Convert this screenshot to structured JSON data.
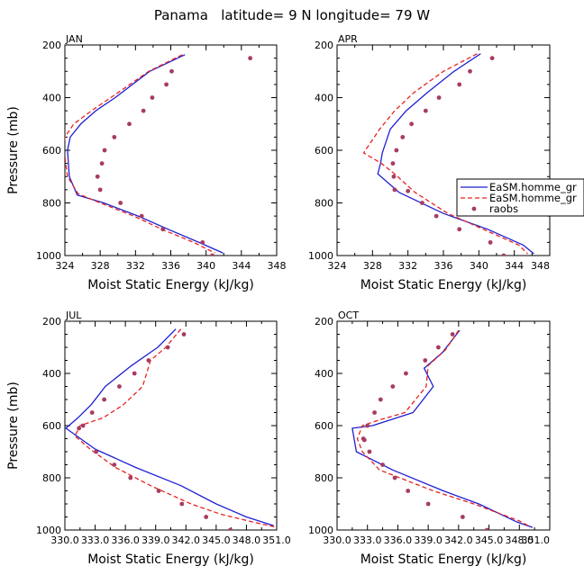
{
  "figure_title": "Panama   latitude= 9 N longitude= 79 W",
  "chart_data": [
    {
      "type": "line",
      "panel": "JAN",
      "xlabel": "Moist Static Energy (kJ/kg)",
      "ylabel": "Pressure (mb)",
      "xlim": [
        324,
        348
      ],
      "ylim": [
        200,
        1000
      ],
      "y_inverted": true,
      "x_tick_labels": [
        "324",
        "328",
        "332",
        "336",
        "340",
        "344",
        "348"
      ],
      "y_tick_labels": [
        "200",
        "400",
        "600",
        "800",
        "1000"
      ],
      "series": [
        {
          "name": "EaSM.homme_gr",
          "style": "solid",
          "color": "#1f1fd1",
          "x": [
            337.6,
            333.6,
            329.7,
            327.5,
            325.8,
            324.6,
            324.3,
            324.5,
            325.4,
            328.4,
            332.3,
            335.7,
            339.2,
            341.9
          ],
          "y": [
            237,
            300,
            400,
            450,
            500,
            550,
            600,
            700,
            770,
            800,
            850,
            900,
            950,
            990
          ]
        },
        {
          "name": "EaSM.homme_gr",
          "style": "dashed",
          "color": "#e8231f",
          "x": [
            337.3,
            333.5,
            329.2,
            327.0,
            325.0,
            324.0,
            323.9,
            324.3,
            325.5,
            328.0,
            331.8,
            335.0,
            338.6,
            341.0
          ],
          "y": [
            237,
            300,
            400,
            450,
            500,
            550,
            600,
            700,
            765,
            800,
            850,
            900,
            950,
            990
          ]
        },
        {
          "name": "raobs",
          "style": "markers",
          "color": "#a63c62",
          "x": [
            345.0,
            336.1,
            335.5,
            333.9,
            332.9,
            331.3,
            329.6,
            328.5,
            328.2,
            327.7,
            328.0,
            330.3,
            332.7,
            335.1,
            339.6,
            340.7
          ],
          "y": [
            250,
            300,
            350,
            400,
            450,
            500,
            550,
            600,
            650,
            700,
            750,
            800,
            850,
            900,
            950,
            1000
          ]
        }
      ]
    },
    {
      "type": "line",
      "panel": "APR",
      "xlabel": "Moist Static Energy (kJ/kg)",
      "ylabel": "",
      "xlim": [
        324,
        348
      ],
      "ylim": [
        200,
        1000
      ],
      "y_inverted": true,
      "x_tick_labels": [
        "324",
        "328",
        "332",
        "336",
        "340",
        "344",
        "348"
      ],
      "y_tick_labels": [
        "200",
        "400",
        "600",
        "800",
        "1000"
      ],
      "series": [
        {
          "name": "EaSM.homme_gr",
          "style": "solid",
          "color": "#1f1fd1",
          "x": [
            340.2,
            337.2,
            334.2,
            331.8,
            330.0,
            329.1,
            328.9,
            328.6,
            331.0,
            336.0,
            341.0,
            345.0,
            346.2
          ],
          "y": [
            233,
            300,
            380,
            450,
            520,
            610,
            650,
            690,
            760,
            840,
            900,
            960,
            993
          ]
        },
        {
          "name": "EaSM.homme_gr",
          "style": "dashed",
          "color": "#e8231f",
          "x": [
            339.8,
            336.0,
            332.7,
            330.5,
            328.8,
            327.0,
            329.0,
            330.5,
            332.8,
            336.5,
            340.5,
            344.5,
            345.5
          ],
          "y": [
            233,
            300,
            380,
            450,
            520,
            610,
            650,
            690,
            760,
            840,
            900,
            960,
            993
          ]
        },
        {
          "name": "raobs",
          "style": "markers",
          "color": "#a63c62",
          "x": [
            341.5,
            339.0,
            337.8,
            335.5,
            334.0,
            332.4,
            331.4,
            330.7,
            330.3,
            330.4,
            330.5,
            332.0,
            333.6,
            335.2,
            337.8,
            341.3,
            342.8
          ],
          "y": [
            250,
            300,
            350,
            400,
            450,
            500,
            550,
            600,
            650,
            700,
            750,
            755,
            800,
            850,
            900,
            950,
            1000
          ]
        }
      ],
      "legend": {
        "placement": "right-middle",
        "entries": [
          {
            "label": "EaSM.homme_gr",
            "style": "solid",
            "color": "#1f1fd1"
          },
          {
            "label": "EaSM.homme_gr",
            "style": "dashed",
            "color": "#e8231f"
          },
          {
            "label": "raobs",
            "style": "markers",
            "color": "#a63c62"
          }
        ]
      }
    },
    {
      "type": "line",
      "panel": "JUL",
      "xlabel": "Moist Static Energy (kJ/kg)",
      "ylabel": "Pressure (mb)",
      "xlim": [
        330.0,
        351.0
      ],
      "ylim": [
        200,
        1000
      ],
      "y_inverted": true,
      "x_tick_labels": [
        "330.0",
        "333.0",
        "336.0",
        "339.0",
        "342.0",
        "345.0",
        "348.0",
        "351.0"
      ],
      "y_tick_labels": [
        "200",
        "400",
        "600",
        "800",
        "1000"
      ],
      "series": [
        {
          "name": "EaSM.homme_gr",
          "style": "solid",
          "color": "#1f1fd1",
          "x": [
            341.0,
            339.2,
            336.6,
            334.0,
            332.6,
            331.3,
            330.1,
            333.0,
            337.0,
            341.5,
            345.0,
            348.0,
            350.7
          ],
          "y": [
            230,
            300,
            370,
            450,
            520,
            570,
            610,
            690,
            760,
            830,
            900,
            950,
            983
          ]
        },
        {
          "name": "EaSM.homme_gr",
          "style": "dashed",
          "color": "#e8231f",
          "x": [
            341.5,
            340.0,
            338.5,
            337.7,
            335.8,
            333.8,
            331.5,
            331.0,
            332.5,
            335.0,
            338.5,
            342.5,
            345.5,
            348.7,
            350.8
          ],
          "y": [
            230,
            300,
            350,
            450,
            520,
            570,
            600,
            640,
            690,
            760,
            830,
            900,
            940,
            970,
            988
          ]
        },
        {
          "name": "raobs",
          "style": "markers",
          "color": "#a63c62",
          "x": [
            341.8,
            340.2,
            338.3,
            336.9,
            335.4,
            333.9,
            332.7,
            331.8,
            331.4,
            333.1,
            334.9,
            336.5,
            339.3,
            341.6,
            344.0,
            346.4
          ],
          "y": [
            250,
            300,
            350,
            400,
            450,
            500,
            550,
            600,
            610,
            700,
            750,
            800,
            850,
            900,
            950,
            1000
          ]
        }
      ]
    },
    {
      "type": "line",
      "panel": "OCT",
      "xlabel": "Moist Static Energy (kJ/kg)",
      "ylabel": "",
      "xlim": [
        330.0,
        351.0
      ],
      "ylim": [
        200,
        1000
      ],
      "y_inverted": true,
      "x_tick_labels": [
        "330.0",
        "333.0",
        "336.0",
        "339.0",
        "342.0",
        "345.0",
        "348.0",
        "351.0"
      ],
      "y_tick_labels": [
        "200",
        "400",
        "600",
        "800",
        "1000"
      ],
      "series": [
        {
          "name": "EaSM.homme_gr",
          "style": "solid",
          "color": "#1f1fd1",
          "x": [
            342.1,
            340.4,
            338.6,
            339.5,
            337.5,
            333.5,
            331.5,
            331.9,
            335.5,
            340.5,
            344.0,
            347.8,
            349.3
          ],
          "y": [
            235,
            320,
            380,
            450,
            550,
            600,
            610,
            700,
            770,
            850,
            900,
            970,
            990
          ]
        },
        {
          "name": "EaSM.homme_gr",
          "style": "dashed",
          "color": "#e8231f",
          "x": [
            342.0,
            340.7,
            339.0,
            338.8,
            336.7,
            334.0,
            332.5,
            332.0,
            332.5,
            334.2,
            339.5,
            343.5,
            348.0,
            349.1
          ],
          "y": [
            235,
            310,
            370,
            450,
            550,
            580,
            600,
            650,
            700,
            770,
            850,
            900,
            965,
            988
          ]
        },
        {
          "name": "raobs",
          "style": "markers",
          "color": "#a63c62",
          "x": [
            341.4,
            340.0,
            338.7,
            336.8,
            335.5,
            334.3,
            333.7,
            333.0,
            332.6,
            332.7,
            333.2,
            334.5,
            335.7,
            337.0,
            339.0,
            342.4,
            344.8
          ],
          "y": [
            250,
            300,
            350,
            400,
            450,
            500,
            550,
            600,
            650,
            655,
            700,
            750,
            800,
            850,
            900,
            950,
            1000
          ]
        }
      ]
    }
  ]
}
